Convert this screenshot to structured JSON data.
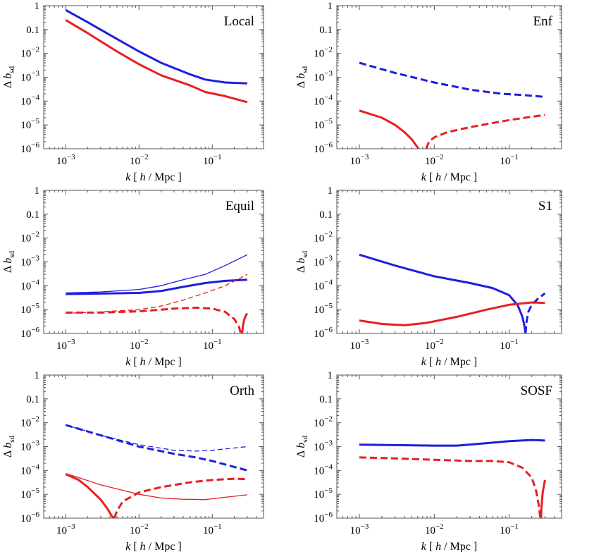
{
  "figure": {
    "description_visible": false
  },
  "chart_data": [
    {
      "type": "line",
      "title": "Local",
      "xscale": "log",
      "yscale": "log",
      "xlim": [
        0.0005,
        0.5
      ],
      "ylim": [
        1e-06,
        1
      ],
      "xlabel": "k [ h / Mpc ]",
      "ylabel": "Δ b_sd",
      "series": [
        {
          "name": "blue thick solid",
          "color": "#1f1fdc",
          "width": 3,
          "dash": "solid",
          "x": [
            0.001,
            0.002,
            0.005,
            0.01,
            0.02,
            0.05,
            0.08,
            0.15,
            0.3
          ],
          "y": [
            0.65,
            0.2,
            0.04,
            0.012,
            0.004,
            0.0013,
            0.0008,
            0.0006,
            0.00055
          ]
        },
        {
          "name": "red thick solid",
          "color": "#e62020",
          "width": 3,
          "dash": "solid",
          "x": [
            0.001,
            0.002,
            0.005,
            0.01,
            0.02,
            0.05,
            0.08,
            0.15,
            0.3
          ],
          "y": [
            0.25,
            0.07,
            0.012,
            0.0035,
            0.0012,
            0.00045,
            0.00024,
            0.00016,
            9e-05
          ]
        }
      ]
    },
    {
      "type": "line",
      "title": "Enf",
      "xscale": "log",
      "yscale": "log",
      "xlim": [
        0.0005,
        0.5
      ],
      "ylim": [
        1e-06,
        1
      ],
      "xlabel": "k [ h / Mpc ]",
      "ylabel": "Δ b_sd",
      "series": [
        {
          "name": "blue thick dashed",
          "color": "#1f1fdc",
          "width": 3,
          "dash": "dashed",
          "x": [
            0.001,
            0.003,
            0.01,
            0.03,
            0.08,
            0.15,
            0.3
          ],
          "y": [
            0.004,
            0.0015,
            0.0006,
            0.0003,
            0.0002,
            0.00018,
            0.00015
          ]
        },
        {
          "name": "red thick solid",
          "color": "#e62020",
          "width": 3,
          "dash": "solid",
          "x": [
            0.001,
            0.002,
            0.003,
            0.004,
            0.005,
            0.0058,
            0.0062
          ],
          "y": [
            4e-05,
            2e-05,
            1e-05,
            5e-06,
            2.5e-06,
            1.3e-06,
            1e-06
          ]
        },
        {
          "name": "red thick dashed",
          "color": "#e62020",
          "width": 3,
          "dash": "dashed",
          "x": [
            0.0078,
            0.0085,
            0.01,
            0.015,
            0.03,
            0.06,
            0.1,
            0.2,
            0.3
          ],
          "y": [
            1e-06,
            2e-06,
            3e-06,
            5e-06,
            8e-06,
            1.2e-05,
            1.6e-05,
            2.2e-05,
            2.6e-05
          ]
        }
      ]
    },
    {
      "type": "line",
      "title": "Equil",
      "xscale": "log",
      "yscale": "log",
      "xlim": [
        0.0005,
        0.5
      ],
      "ylim": [
        1e-06,
        1
      ],
      "xlabel": "k [ h / Mpc ]",
      "ylabel": "Δ b_sd",
      "series": [
        {
          "name": "blue thin solid",
          "color": "#1f1fdc",
          "width": 1.3,
          "dash": "solid",
          "x": [
            0.001,
            0.003,
            0.01,
            0.02,
            0.04,
            0.08,
            0.15,
            0.3
          ],
          "y": [
            5e-05,
            5.5e-05,
            7e-05,
            0.0001,
            0.00018,
            0.0003,
            0.0007,
            0.002
          ]
        },
        {
          "name": "blue thick solid",
          "color": "#1f1fdc",
          "width": 3,
          "dash": "solid",
          "x": [
            0.001,
            0.003,
            0.01,
            0.02,
            0.04,
            0.08,
            0.15,
            0.3
          ],
          "y": [
            4.5e-05,
            4.7e-05,
            5e-05,
            6e-05,
            9e-05,
            0.00013,
            0.00016,
            0.00018
          ]
        },
        {
          "name": "red thin dashed",
          "color": "#e62020",
          "width": 1.3,
          "dash": "dashed",
          "x": [
            0.001,
            0.003,
            0.01,
            0.02,
            0.04,
            0.08,
            0.15,
            0.3
          ],
          "y": [
            7e-06,
            8e-06,
            1e-05,
            1.4e-05,
            2.5e-05,
            5e-05,
            0.0001,
            0.0003
          ]
        },
        {
          "name": "red thick dashed",
          "color": "#e62020",
          "width": 3,
          "dash": "dashed",
          "x": [
            0.001,
            0.003,
            0.01,
            0.03,
            0.06,
            0.1,
            0.15,
            0.2,
            0.23,
            0.245
          ],
          "y": [
            7.5e-06,
            7.5e-06,
            8.5e-06,
            1.1e-05,
            1.2e-05,
            1.1e-05,
            8e-06,
            4e-06,
            2e-06,
            1e-06
          ]
        },
        {
          "name": "red thick solid",
          "color": "#e62020",
          "width": 3,
          "dash": "solid",
          "x": [
            0.255,
            0.26,
            0.27,
            0.285,
            0.3
          ],
          "y": [
            1e-06,
            1.8e-06,
            3.5e-06,
            5.5e-06,
            7e-06
          ]
        }
      ]
    },
    {
      "type": "line",
      "title": "S1",
      "xscale": "log",
      "yscale": "log",
      "xlim": [
        0.0005,
        0.5
      ],
      "ylim": [
        1e-06,
        1
      ],
      "xlabel": "k [ h / Mpc ]",
      "ylabel": "Δ b_sd",
      "series": [
        {
          "name": "blue thick solid",
          "color": "#1f1fdc",
          "width": 3,
          "dash": "solid",
          "x": [
            0.001,
            0.003,
            0.01,
            0.03,
            0.06,
            0.1,
            0.13,
            0.15,
            0.16,
            0.165
          ],
          "y": [
            0.002,
            0.0007,
            0.00025,
            0.00013,
            8e-05,
            4e-05,
            1.5e-05,
            5e-06,
            2e-06,
            1e-06
          ]
        },
        {
          "name": "blue thick dashed",
          "color": "#1f1fdc",
          "width": 3,
          "dash": "dashed",
          "x": [
            0.165,
            0.17,
            0.18,
            0.2,
            0.24,
            0.3
          ],
          "y": [
            1e-06,
            3e-06,
            8e-06,
            1.6e-05,
            2.8e-05,
            4.8e-05
          ]
        },
        {
          "name": "red thick solid",
          "color": "#e62020",
          "width": 3,
          "dash": "solid",
          "x": [
            0.001,
            0.002,
            0.004,
            0.008,
            0.02,
            0.05,
            0.1,
            0.2,
            0.3
          ],
          "y": [
            3.5e-06,
            2.5e-06,
            2.2e-06,
            2.8e-06,
            5e-06,
            1e-05,
            1.6e-05,
            2e-05,
            1.9e-05
          ]
        }
      ]
    },
    {
      "type": "line",
      "title": "Orth",
      "xscale": "log",
      "yscale": "log",
      "xlim": [
        0.0005,
        0.5
      ],
      "ylim": [
        1e-06,
        1
      ],
      "xlabel": "k [ h / Mpc ]",
      "ylabel": "Δ b_sd",
      "series": [
        {
          "name": "blue thin dashed",
          "color": "#1f1fdc",
          "width": 1.3,
          "dash": "dashed",
          "x": [
            0.001,
            0.003,
            0.01,
            0.03,
            0.06,
            0.1,
            0.3
          ],
          "y": [
            0.008,
            0.003,
            0.0012,
            0.0007,
            0.00065,
            0.0007,
            0.001
          ]
        },
        {
          "name": "blue thick dashed",
          "color": "#1f1fdc",
          "width": 3,
          "dash": "dashed",
          "x": [
            0.001,
            0.003,
            0.01,
            0.03,
            0.06,
            0.1,
            0.2,
            0.3
          ],
          "y": [
            0.008,
            0.003,
            0.001,
            0.0005,
            0.00035,
            0.00025,
            0.00014,
            0.0001
          ]
        },
        {
          "name": "red thin solid",
          "color": "#e62020",
          "width": 1.3,
          "dash": "solid",
          "x": [
            0.001,
            0.003,
            0.01,
            0.02,
            0.04,
            0.08,
            0.15,
            0.3
          ],
          "y": [
            7.5e-05,
            2.5e-05,
            1e-05,
            7e-06,
            6.2e-06,
            6e-06,
            7.5e-06,
            9.5e-06
          ]
        },
        {
          "name": "red thick solid",
          "color": "#e62020",
          "width": 3,
          "dash": "solid",
          "x": [
            0.001,
            0.0015,
            0.002,
            0.003,
            0.0037,
            0.0042,
            0.0045
          ],
          "y": [
            7e-05,
            4e-05,
            2e-05,
            6e-06,
            2.5e-06,
            1.3e-06,
            1e-06
          ]
        },
        {
          "name": "red thick dashed",
          "color": "#e62020",
          "width": 3,
          "dash": "dashed",
          "x": [
            0.0046,
            0.005,
            0.006,
            0.01,
            0.02,
            0.05,
            0.1,
            0.2,
            0.3
          ],
          "y": [
            1e-06,
            2e-06,
            5e-06,
            1.2e-05,
            2e-05,
            3.2e-05,
            4e-05,
            4.5e-05,
            4.3e-05
          ]
        }
      ]
    },
    {
      "type": "line",
      "title": "SOSF",
      "xscale": "log",
      "yscale": "log",
      "xlim": [
        0.0005,
        0.5
      ],
      "ylim": [
        1e-06,
        1
      ],
      "xlabel": "k [ h / Mpc ]",
      "ylabel": "Δ b_sd",
      "series": [
        {
          "name": "blue thick solid",
          "color": "#1f1fdc",
          "width": 3,
          "dash": "solid",
          "x": [
            0.001,
            0.003,
            0.01,
            0.02,
            0.05,
            0.1,
            0.2,
            0.3
          ],
          "y": [
            0.0012,
            0.00115,
            0.0011,
            0.0011,
            0.0014,
            0.0017,
            0.0019,
            0.0018
          ]
        },
        {
          "name": "red thick dashed",
          "color": "#e62020",
          "width": 3,
          "dash": "dashed",
          "x": [
            0.001,
            0.003,
            0.01,
            0.03,
            0.06,
            0.1,
            0.15,
            0.2,
            0.23,
            0.25,
            0.26
          ],
          "y": [
            0.00035,
            0.00032,
            0.00028,
            0.00025,
            0.00025,
            0.00022,
            0.00013,
            5e-05,
            1.3e-05,
            3e-06,
            1e-06
          ]
        },
        {
          "name": "red thick solid",
          "color": "#e62020",
          "width": 3,
          "dash": "solid",
          "x": [
            0.265,
            0.27,
            0.28,
            0.3
          ],
          "y": [
            1e-06,
            3e-06,
            1.2e-05,
            4e-05
          ]
        }
      ]
    }
  ],
  "y_tick_values": [
    1e-06,
    1e-05,
    0.0001,
    0.001,
    0.01,
    0.1,
    1
  ],
  "y_tick_labels": [
    {
      "base": "10",
      "exp": "−6"
    },
    {
      "base": "10",
      "exp": "−5"
    },
    {
      "base": "10",
      "exp": "−4"
    },
    {
      "base": "10",
      "exp": "−3"
    },
    {
      "base": "10",
      "exp": "−2"
    },
    {
      "base": "0.1",
      "exp": ""
    },
    {
      "base": "1",
      "exp": ""
    }
  ],
  "x_tick_values": [
    0.001,
    0.01,
    0.1
  ],
  "x_tick_labels": [
    {
      "base": "10",
      "exp": "−3"
    },
    {
      "base": "10",
      "exp": "−2"
    },
    {
      "base": "10",
      "exp": "−1"
    }
  ],
  "axis_text": {
    "ylabel_delta": "Δ",
    "ylabel_b": "b",
    "ylabel_sub": "sd",
    "xlabel_k": "k",
    "xlabel_h": "h",
    "xlabel_mpc": "/ Mpc ]",
    "xlabel_open": "["
  }
}
